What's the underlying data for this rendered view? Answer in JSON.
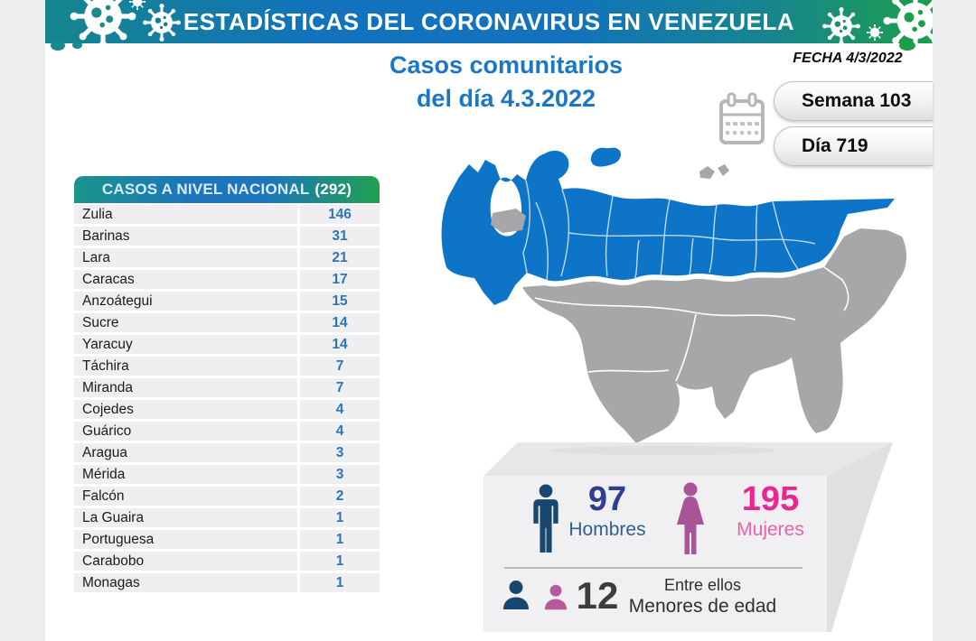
{
  "header": {
    "title": "ESTADÍSTICAS DEL CORONAVIRUS EN VENEZUELA"
  },
  "subtitle": {
    "line1": "Casos comunitarios",
    "line2": "del día 4.3.2022"
  },
  "meta": {
    "date_label": "FECHA 4/3/2022",
    "week_label": "Semana 103",
    "day_label": "Día 719"
  },
  "table": {
    "title": "CASOS A NIVEL NACIONAL",
    "total": "(292)",
    "rows": [
      {
        "state": "Zulia",
        "cases": "146"
      },
      {
        "state": "Barinas",
        "cases": "31"
      },
      {
        "state": "Lara",
        "cases": "21"
      },
      {
        "state": "Caracas",
        "cases": "17"
      },
      {
        "state": "Anzoátegui",
        "cases": "15"
      },
      {
        "state": "Sucre",
        "cases": "14"
      },
      {
        "state": "Yaracuy",
        "cases": "14"
      },
      {
        "state": "Táchira",
        "cases": "7"
      },
      {
        "state": "Miranda",
        "cases": "7"
      },
      {
        "state": "Cojedes",
        "cases": "4"
      },
      {
        "state": "Guárico",
        "cases": "4"
      },
      {
        "state": "Aragua",
        "cases": "3"
      },
      {
        "state": "Mérida",
        "cases": "3"
      },
      {
        "state": "Falcón",
        "cases": "2"
      },
      {
        "state": "La Guaira",
        "cases": "1"
      },
      {
        "state": "Portuguesa",
        "cases": "1"
      },
      {
        "state": "Carabobo",
        "cases": "1"
      },
      {
        "state": "Monagas",
        "cases": "1"
      }
    ]
  },
  "stats": {
    "men": {
      "value": "97",
      "label": "Hombres"
    },
    "women": {
      "value": "195",
      "label": "Mujeres"
    },
    "minors": {
      "value": "12",
      "label_top": "Entre ellos",
      "label_bottom": "Menores de edad"
    }
  },
  "icons": {
    "virus": "virus-icon",
    "calendar": "calendar-icon",
    "man": "man-icon",
    "woman": "woman-icon",
    "boy_bust": "boy-bust-icon",
    "girl_bust": "girl-bust-icon"
  },
  "colors": {
    "banner_teal": "#15858d",
    "banner_blue": "#1272be",
    "banner_green": "#1d9e49",
    "title_blue": "#1b76c4",
    "table_value_blue": "#2e74b8",
    "map_highlight_blue": "#0e74c8",
    "map_gray": "#a7a7a9",
    "men_navy": "#17476e",
    "men_number": "#2d3f8e",
    "women_pink": "#ec268f",
    "women_icon_plum": "#a85497",
    "panel_gray": "#f0f0f2"
  },
  "chart_data": {
    "type": "table",
    "title": "CASOS A NIVEL NACIONAL (292)",
    "subtitle": "Casos comunitarios del día 4.3.2022",
    "date": "4/3/2022",
    "week": 103,
    "day": 719,
    "categories": [
      "Zulia",
      "Barinas",
      "Lara",
      "Caracas",
      "Anzoátegui",
      "Sucre",
      "Yaracuy",
      "Táchira",
      "Miranda",
      "Cojedes",
      "Guárico",
      "Aragua",
      "Mérida",
      "Falcón",
      "La Guaira",
      "Portuguesa",
      "Carabobo",
      "Monagas"
    ],
    "values": [
      146,
      31,
      21,
      17,
      15,
      14,
      14,
      7,
      7,
      4,
      4,
      3,
      3,
      2,
      1,
      1,
      1,
      1
    ],
    "total": 292,
    "demographics": {
      "hombres": 97,
      "mujeres": 195,
      "menores_de_edad": 12
    },
    "map_note_states_with_cases_highlighted": true
  }
}
